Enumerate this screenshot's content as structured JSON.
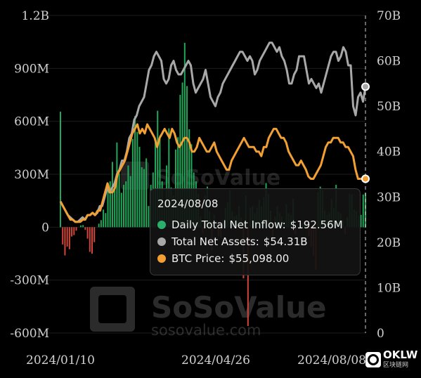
{
  "chart_data": {
    "type": "bar+line",
    "x_labels": [
      "2024/01/10",
      "2024/04/26",
      "2024/08/08"
    ],
    "y_left": {
      "ticks": [
        "1.2B",
        "900M",
        "600M",
        "300M",
        "0",
        "-300M",
        "-600M"
      ],
      "range": [
        -600,
        1200
      ],
      "unit": "M"
    },
    "y_right": {
      "ticks": [
        "70B",
        "60B",
        "50B",
        "40B",
        "30B",
        "20B",
        "10B",
        "0"
      ],
      "range": [
        0,
        70
      ],
      "unit": "B"
    },
    "series": [
      {
        "name": "Daily Total Net Inflow",
        "type": "bar",
        "color_positive": "#1fa85a",
        "color_negative": "#d0453a",
        "values": [
          655,
          -98,
          -160,
          -110,
          -125,
          -53,
          -45,
          -20,
          0,
          10,
          12,
          -15,
          -65,
          -140,
          -150,
          -85,
          0,
          20,
          40,
          100,
          80,
          240,
          260,
          370,
          240,
          480,
          305,
          195,
          240,
          260,
          350,
          290,
          500,
          630,
          540,
          455,
          340,
          330,
          390,
          120,
          240,
          310,
          480,
          660,
          520,
          260,
          130,
          350,
          560,
          225,
          180,
          440,
          510,
          750,
          820,
          1045,
          800,
          555,
          470,
          310,
          260,
          190,
          60,
          -35,
          180,
          230,
          90,
          -130,
          70,
          30,
          -50,
          -60,
          40,
          110,
          140,
          210,
          90,
          60,
          70,
          120,
          55,
          -290,
          180,
          -560,
          110,
          120,
          80,
          110,
          155,
          120,
          170,
          250,
          190,
          95,
          -80,
          60,
          120,
          80,
          60,
          35,
          130,
          80,
          70,
          160,
          -40,
          0,
          5,
          20,
          30,
          0,
          -50,
          -110,
          -160,
          -240,
          200,
          230,
          210,
          95,
          70,
          80,
          160,
          110,
          240,
          90,
          75,
          40,
          -40,
          55,
          190,
          185,
          100,
          90,
          65,
          70,
          185,
          193
        ]
      },
      {
        "name": "Total Net Assets",
        "type": "line",
        "color": "#a8a8a8",
        "values": [
          29,
          28,
          27,
          26,
          25.5,
          25,
          24.5,
          24.5,
          25,
          25.5,
          25,
          26,
          26,
          26.5,
          26,
          26.5,
          28,
          28,
          30,
          32,
          31,
          32,
          33,
          35,
          36,
          38,
          38,
          40,
          43,
          44,
          47,
          48,
          50,
          51,
          52,
          55,
          58,
          59,
          61,
          62,
          61,
          60,
          56,
          55,
          56,
          59,
          60,
          58,
          57,
          57,
          58,
          59,
          60,
          59,
          55,
          53,
          54,
          55,
          56,
          58,
          55,
          52,
          51,
          50,
          52,
          53,
          55,
          56,
          57,
          58,
          59,
          60,
          61,
          62,
          62,
          61,
          60,
          61,
          60,
          57,
          58,
          60,
          61,
          62,
          63,
          64,
          64,
          63,
          62,
          63,
          61,
          60,
          58,
          55,
          55,
          57,
          58,
          61,
          61,
          61,
          58,
          55,
          56,
          55,
          54,
          55,
          53,
          55,
          57,
          59,
          61,
          62,
          62,
          60,
          61,
          63,
          62,
          59,
          59,
          50,
          48,
          52,
          53,
          51,
          54.3
        ]
      },
      {
        "name": "BTC Price",
        "type": "line",
        "color": "#f2a033",
        "values": [
          29,
          28,
          27,
          26,
          25,
          25,
          24.5,
          24.5,
          24.5,
          25,
          25,
          26,
          26,
          26.5,
          26,
          27,
          27,
          29,
          31,
          33,
          31,
          31,
          32,
          35,
          36,
          37,
          38,
          40,
          42,
          44,
          45,
          46,
          44,
          45,
          44,
          46,
          45,
          44,
          43,
          41,
          43,
          44,
          45,
          44,
          43,
          45,
          44,
          42,
          41,
          42,
          43,
          43,
          42,
          40,
          40,
          41,
          43,
          42,
          41,
          40,
          40,
          41,
          42,
          40,
          39,
          38,
          37,
          36,
          36,
          38,
          39,
          40,
          41,
          42,
          43,
          42,
          41,
          41,
          41,
          40,
          40,
          39,
          41,
          41,
          43,
          44,
          45,
          45,
          44,
          43,
          43,
          42,
          40,
          39,
          38,
          37,
          37,
          38,
          37,
          36,
          34.5,
          34,
          34,
          35,
          36,
          37,
          39,
          41,
          42,
          42,
          43,
          43,
          43,
          42,
          42,
          41,
          41,
          40,
          39,
          36,
          34,
          34,
          34,
          34
        ]
      }
    ],
    "cursor_label": "2024/08/08",
    "tooltip": {
      "date": "2024/08/08",
      "rows": [
        {
          "label": "Daily Total Net Inflow:",
          "value": "$192.56M",
          "color": "#2ab06c"
        },
        {
          "label": "Total Net Assets:",
          "value": "$54.31B",
          "color": "#a8a8a8"
        },
        {
          "label": "BTC Price:",
          "value": "$55,098.00",
          "color": "#f2a033"
        }
      ]
    }
  },
  "watermark": {
    "brand": "SoSoValue",
    "url": "sosovalue.com"
  },
  "badge": {
    "name": "OKLW",
    "sub": "区块链网"
  }
}
